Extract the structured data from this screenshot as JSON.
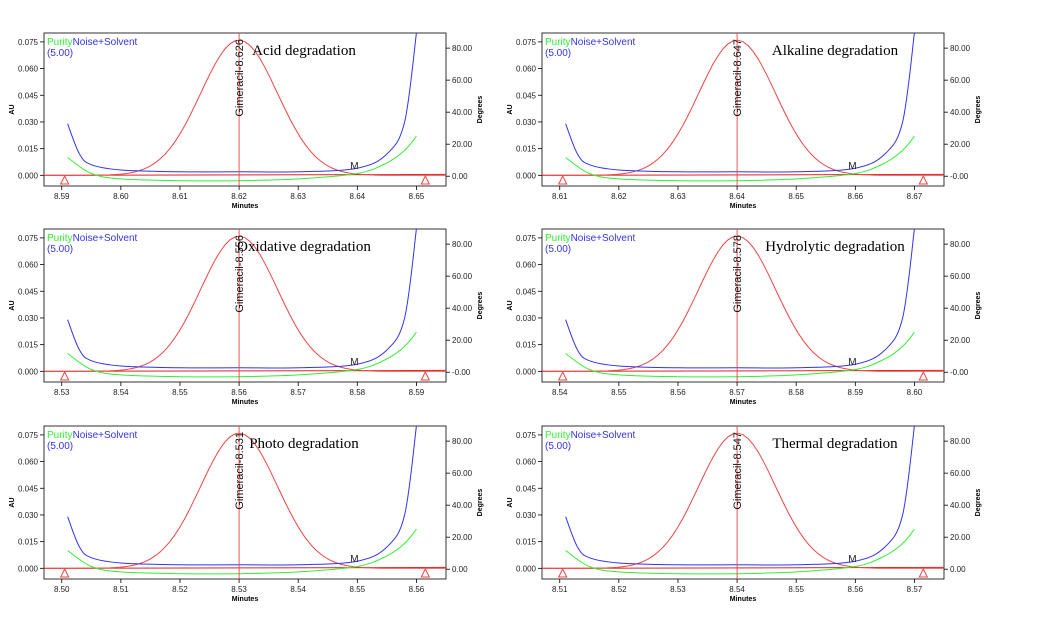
{
  "colors": {
    "purity": "#33ee33",
    "noise": "#3333ee",
    "peak": "#ee4444",
    "baseline": "#dd2222",
    "axis": "#000000"
  },
  "legend": {
    "purity_label": "Purity",
    "noise_label": "Noise+Solvent",
    "threshold": "(5.00)"
  },
  "axes": {
    "xlabel": "Minutes",
    "ylabel_left": "AU",
    "ylabel_right": "Degrees",
    "left_ticks": [
      "0.000",
      "0.015",
      "0.030",
      "0.045",
      "0.060",
      "0.075"
    ],
    "right_ticks": [
      "0.00",
      "20.00",
      "40.00",
      "60.00",
      "80.00"
    ],
    "right_ticks_alt": [
      "-0.00",
      "20.00",
      "40.00",
      "60.00",
      "80.00"
    ],
    "marker_label": "M"
  },
  "chart_data": [
    {
      "type": "line",
      "title": "Acid degradation",
      "peak_label": "Gimeracil-8.626",
      "peak_x": 8.62,
      "x_ticks": [
        "8.59",
        "8.60",
        "8.61",
        "8.62",
        "8.63",
        "8.64",
        "8.65"
      ],
      "xlim": [
        8.587,
        8.655
      ],
      "ylim": [
        -0.006,
        0.08
      ],
      "peak_height": 0.076,
      "peak_sigma": 0.0065,
      "triangles_x": [
        8.5905,
        8.6515
      ],
      "marker_x": 8.6395,
      "right_ticks_kind": "main",
      "series": [
        {
          "name": "Purity",
          "x": [
            8.591,
            8.595,
            8.6,
            8.61,
            8.62,
            8.63,
            8.64,
            8.645,
            8.648,
            8.65
          ],
          "y": [
            0.01,
            0.001,
            -0.002,
            -0.003,
            -0.003,
            -0.002,
            0.001,
            0.007,
            0.014,
            0.022
          ]
        },
        {
          "name": "Noise+Solvent",
          "x": [
            8.591,
            8.593,
            8.595,
            8.6,
            8.61,
            8.62,
            8.63,
            8.64,
            8.645,
            8.648,
            8.65
          ],
          "y": [
            0.029,
            0.012,
            0.006,
            0.003,
            0.002,
            0.002,
            0.002,
            0.004,
            0.012,
            0.03,
            0.08
          ]
        }
      ]
    },
    {
      "type": "line",
      "title": "Alkaline degradation",
      "peak_label": "Gimeracil-8.647",
      "peak_x": 8.64,
      "x_ticks": [
        "8.61",
        "8.62",
        "8.63",
        "8.64",
        "8.65",
        "8.66",
        "8.67"
      ],
      "xlim": [
        8.607,
        8.675
      ],
      "ylim": [
        -0.006,
        0.08
      ],
      "peak_height": 0.076,
      "peak_sigma": 0.0065,
      "triangles_x": [
        8.6105,
        8.6715
      ],
      "marker_x": 8.6595,
      "right_ticks_kind": "alt",
      "series": [
        {
          "name": "Purity",
          "x": [
            8.611,
            8.615,
            8.62,
            8.63,
            8.64,
            8.65,
            8.66,
            8.665,
            8.668,
            8.67
          ],
          "y": [
            0.01,
            0.001,
            -0.002,
            -0.003,
            -0.003,
            -0.002,
            0.001,
            0.007,
            0.014,
            0.022
          ]
        },
        {
          "name": "Noise+Solvent",
          "x": [
            8.611,
            8.613,
            8.615,
            8.62,
            8.63,
            8.64,
            8.65,
            8.66,
            8.665,
            8.668,
            8.67
          ],
          "y": [
            0.029,
            0.012,
            0.006,
            0.003,
            0.002,
            0.002,
            0.002,
            0.004,
            0.012,
            0.03,
            0.08
          ]
        }
      ]
    },
    {
      "type": "line",
      "title": "Oxidative degradation",
      "peak_label": "Gimeracil-8.556",
      "peak_x": 8.56,
      "x_ticks": [
        "8.53",
        "8.54",
        "8.55",
        "8.56",
        "8.57",
        "8.58",
        "8.59"
      ],
      "xlim": [
        8.527,
        8.595
      ],
      "ylim": [
        -0.006,
        0.08
      ],
      "peak_height": 0.076,
      "peak_sigma": 0.0065,
      "triangles_x": [
        8.5305,
        8.5915
      ],
      "marker_x": 8.5795,
      "right_ticks_kind": "alt",
      "series": [
        {
          "name": "Purity",
          "x": [
            8.531,
            8.535,
            8.54,
            8.55,
            8.56,
            8.57,
            8.58,
            8.585,
            8.588,
            8.59
          ],
          "y": [
            0.01,
            0.001,
            -0.002,
            -0.003,
            -0.003,
            -0.002,
            0.001,
            0.007,
            0.014,
            0.022
          ]
        },
        {
          "name": "Noise+Solvent",
          "x": [
            8.531,
            8.533,
            8.535,
            8.54,
            8.55,
            8.56,
            8.57,
            8.58,
            8.585,
            8.588,
            8.59
          ],
          "y": [
            0.029,
            0.012,
            0.006,
            0.003,
            0.002,
            0.002,
            0.002,
            0.004,
            0.012,
            0.03,
            0.08
          ]
        }
      ]
    },
    {
      "type": "line",
      "title": "Hydrolytic degradation",
      "peak_label": "Gimeracil-8.578",
      "peak_x": 8.57,
      "x_ticks": [
        "8.54",
        "8.55",
        "8.56",
        "8.57",
        "8.58",
        "8.59",
        "8.60"
      ],
      "xlim": [
        8.537,
        8.605
      ],
      "ylim": [
        -0.006,
        0.08
      ],
      "peak_height": 0.076,
      "peak_sigma": 0.0065,
      "triangles_x": [
        8.5405,
        8.6015
      ],
      "marker_x": 8.5895,
      "right_ticks_kind": "alt",
      "series": [
        {
          "name": "Purity",
          "x": [
            8.541,
            8.545,
            8.55,
            8.56,
            8.57,
            8.58,
            8.59,
            8.595,
            8.598,
            8.6
          ],
          "y": [
            0.01,
            0.001,
            -0.002,
            -0.003,
            -0.003,
            -0.002,
            0.001,
            0.007,
            0.014,
            0.022
          ]
        },
        {
          "name": "Noise+Solvent",
          "x": [
            8.541,
            8.543,
            8.545,
            8.55,
            8.56,
            8.57,
            8.58,
            8.59,
            8.595,
            8.598,
            8.6
          ],
          "y": [
            0.029,
            0.012,
            0.006,
            0.003,
            0.002,
            0.002,
            0.002,
            0.004,
            0.012,
            0.03,
            0.08
          ]
        }
      ]
    },
    {
      "type": "line",
      "title": "Photo degradation",
      "peak_label": "Gimeracil-8.531",
      "peak_x": 8.53,
      "x_ticks": [
        "8.50",
        "8.51",
        "8.52",
        "8.53",
        "8.54",
        "8.55",
        "8.56"
      ],
      "xlim": [
        8.497,
        8.565
      ],
      "ylim": [
        -0.006,
        0.08
      ],
      "peak_height": 0.076,
      "peak_sigma": 0.0065,
      "triangles_x": [
        8.5005,
        8.5615
      ],
      "marker_x": 8.5495,
      "right_ticks_kind": "main",
      "series": [
        {
          "name": "Purity",
          "x": [
            8.501,
            8.505,
            8.51,
            8.52,
            8.53,
            8.54,
            8.55,
            8.555,
            8.558,
            8.56
          ],
          "y": [
            0.01,
            0.001,
            -0.002,
            -0.003,
            -0.003,
            -0.002,
            0.001,
            0.007,
            0.014,
            0.022
          ]
        },
        {
          "name": "Noise+Solvent",
          "x": [
            8.501,
            8.503,
            8.505,
            8.51,
            8.52,
            8.53,
            8.54,
            8.55,
            8.555,
            8.558,
            8.56
          ],
          "y": [
            0.029,
            0.012,
            0.006,
            0.003,
            0.002,
            0.002,
            0.002,
            0.004,
            0.012,
            0.03,
            0.08
          ]
        }
      ]
    },
    {
      "type": "line",
      "title": "Thermal degradation",
      "peak_label": "Gimeracil-8.547",
      "peak_x": 8.54,
      "x_ticks": [
        "8.51",
        "8.52",
        "8.53",
        "8.54",
        "8.55",
        "8.56",
        "8.57"
      ],
      "xlim": [
        8.507,
        8.575
      ],
      "ylim": [
        -0.006,
        0.08
      ],
      "peak_height": 0.076,
      "peak_sigma": 0.0065,
      "triangles_x": [
        8.5105,
        8.5715
      ],
      "marker_x": 8.5595,
      "right_ticks_kind": "main",
      "series": [
        {
          "name": "Purity",
          "x": [
            8.511,
            8.515,
            8.52,
            8.53,
            8.54,
            8.55,
            8.56,
            8.565,
            8.568,
            8.57
          ],
          "y": [
            0.01,
            0.001,
            -0.002,
            -0.003,
            -0.003,
            -0.002,
            0.001,
            0.007,
            0.014,
            0.022
          ]
        },
        {
          "name": "Noise+Solvent",
          "x": [
            8.511,
            8.513,
            8.515,
            8.52,
            8.53,
            8.54,
            8.55,
            8.56,
            8.565,
            8.568,
            8.57
          ],
          "y": [
            0.029,
            0.012,
            0.006,
            0.003,
            0.002,
            0.002,
            0.002,
            0.004,
            0.012,
            0.03,
            0.08
          ]
        }
      ]
    }
  ]
}
